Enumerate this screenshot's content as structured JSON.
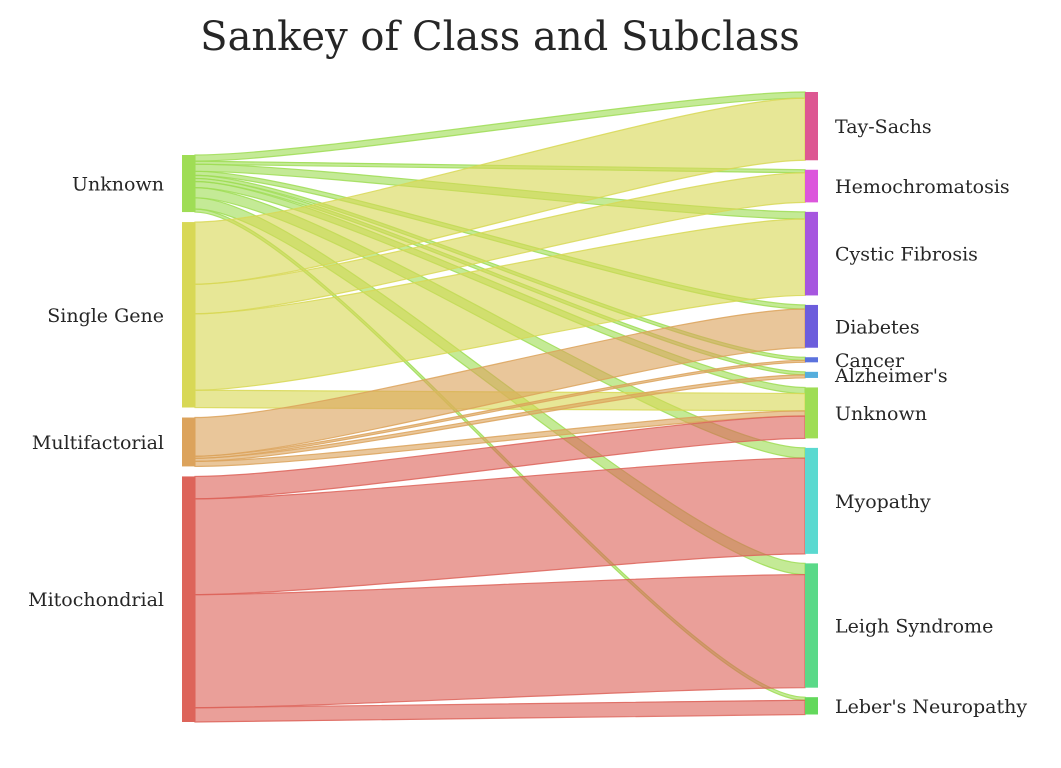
{
  "chart_data": {
    "type": "sankey",
    "title": "Sankey of Class and Subclass",
    "sources": [
      {
        "name": "Unknown",
        "color": "#9fdd55"
      },
      {
        "name": "Single Gene",
        "color": "#d8d856"
      },
      {
        "name": "Multifactorial",
        "color": "#dca35c"
      },
      {
        "name": "Mitochondrial",
        "color": "#dd645a"
      }
    ],
    "targets": [
      {
        "name": "Tay-Sachs",
        "color": "#dd5792"
      },
      {
        "name": "Hemochromatosis",
        "color": "#dc56dc"
      },
      {
        "name": "Cystic Fibrosis",
        "color": "#a656df"
      },
      {
        "name": "Diabetes",
        "color": "#6c5ddc"
      },
      {
        "name": "Cancer",
        "color": "#5b72dd"
      },
      {
        "name": "Alzheimer's",
        "color": "#55aedd"
      },
      {
        "name": "Unknown",
        "color": "#9fdd55"
      },
      {
        "name": "Myopathy",
        "color": "#5ad9d0"
      },
      {
        "name": "Leigh Syndrome",
        "color": "#5ad988"
      },
      {
        "name": "Leber's Neuropathy",
        "color": "#63d85c"
      }
    ],
    "links": [
      {
        "source": "Unknown",
        "target": "Tay-Sachs",
        "value": 6
      },
      {
        "source": "Unknown",
        "target": "Hemochromatosis",
        "value": 3
      },
      {
        "source": "Unknown",
        "target": "Cystic Fibrosis",
        "value": 7
      },
      {
        "source": "Unknown",
        "target": "Diabetes",
        "value": 4
      },
      {
        "source": "Unknown",
        "target": "Cancer",
        "value": 3
      },
      {
        "source": "Unknown",
        "target": "Alzheimer's",
        "value": 3
      },
      {
        "source": "Unknown",
        "target": "Unknown",
        "value": 6
      },
      {
        "source": "Unknown",
        "target": "Myopathy",
        "value": 10
      },
      {
        "source": "Unknown",
        "target": "Leigh Syndrome",
        "value": 11
      },
      {
        "source": "Unknown",
        "target": "Leber's Neuropathy",
        "value": 3
      },
      {
        "source": "Single Gene",
        "target": "Tay-Sachs",
        "value": 61
      },
      {
        "source": "Single Gene",
        "target": "Hemochromatosis",
        "value": 29
      },
      {
        "source": "Single Gene",
        "target": "Cystic Fibrosis",
        "value": 75
      },
      {
        "source": "Single Gene",
        "target": "Unknown",
        "value": 17
      },
      {
        "source": "Multifactorial",
        "target": "Diabetes",
        "value": 38
      },
      {
        "source": "Multifactorial",
        "target": "Cancer",
        "value": 2
      },
      {
        "source": "Multifactorial",
        "target": "Alzheimer's",
        "value": 3
      },
      {
        "source": "Multifactorial",
        "target": "Unknown",
        "value": 5
      },
      {
        "source": "Mitochondrial",
        "target": "Unknown",
        "value": 22
      },
      {
        "source": "Mitochondrial",
        "target": "Myopathy",
        "value": 94
      },
      {
        "source": "Mitochondrial",
        "target": "Leigh Syndrome",
        "value": 111
      },
      {
        "source": "Mitochondrial",
        "target": "Leber's Neuropathy",
        "value": 14
      }
    ]
  }
}
